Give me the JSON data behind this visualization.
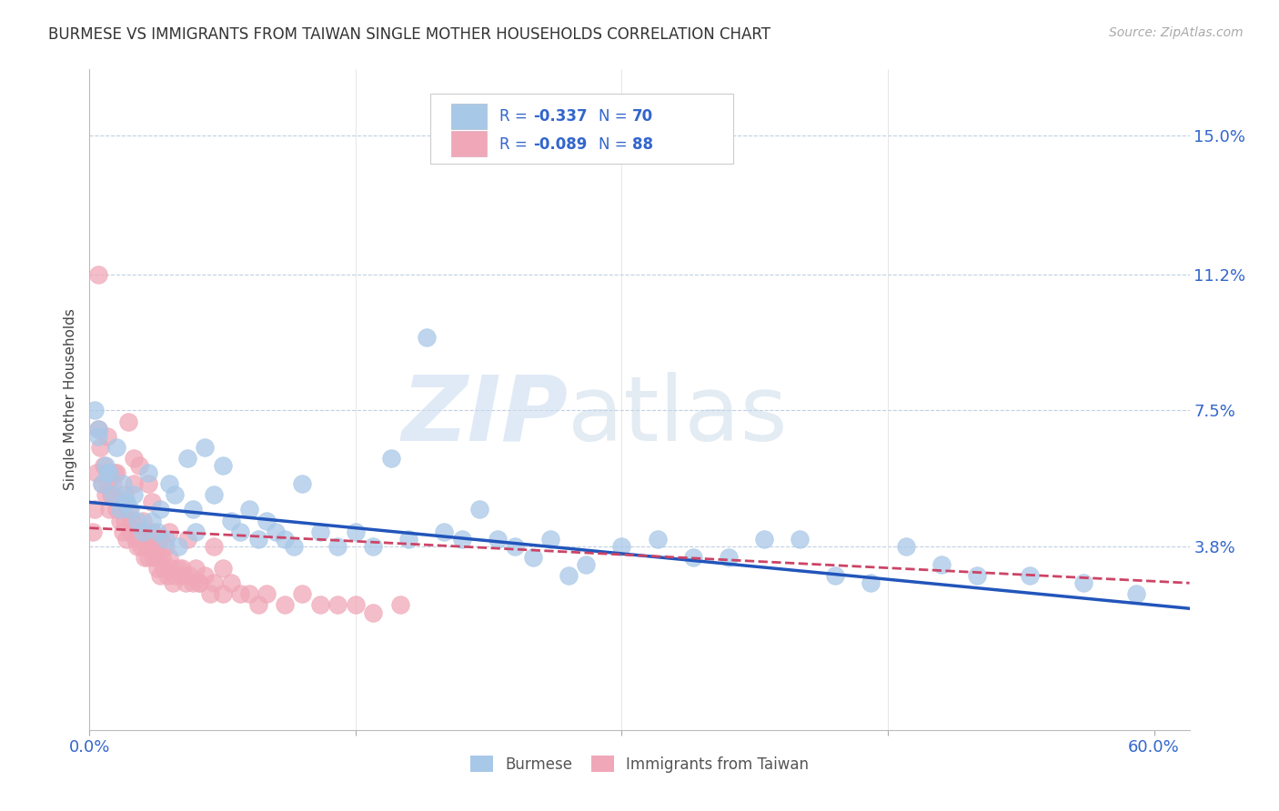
{
  "title": "BURMESE VS IMMIGRANTS FROM TAIWAN SINGLE MOTHER HOUSEHOLDS CORRELATION CHART",
  "source": "Source: ZipAtlas.com",
  "ylabel": "Single Mother Households",
  "ytick_labels": [
    "15.0%",
    "11.2%",
    "7.5%",
    "3.8%"
  ],
  "ytick_values": [
    0.15,
    0.112,
    0.075,
    0.038
  ],
  "xlim": [
    0.0,
    0.62
  ],
  "ylim": [
    -0.012,
    0.168
  ],
  "burmese_color": "#a8c8e8",
  "taiwan_color": "#f0a8b8",
  "burmese_line_color": "#2255bb",
  "taiwan_line_color": "#cc4466",
  "legend_label_blue": "Burmese",
  "legend_label_pink": "Immigrants from Taiwan",
  "R_burmese": "-0.337",
  "N_burmese": "70",
  "R_taiwan": "-0.089",
  "N_taiwan": "88",
  "text_color_blue": "#3366cc",
  "text_color_dark": "#334455",
  "burmese_x": [
    0.003,
    0.005,
    0.007,
    0.009,
    0.011,
    0.013,
    0.015,
    0.017,
    0.019,
    0.021,
    0.023,
    0.025,
    0.027,
    0.03,
    0.033,
    0.035,
    0.038,
    0.04,
    0.043,
    0.045,
    0.048,
    0.05,
    0.055,
    0.058,
    0.06,
    0.065,
    0.07,
    0.075,
    0.08,
    0.085,
    0.09,
    0.095,
    0.1,
    0.105,
    0.11,
    0.115,
    0.12,
    0.13,
    0.14,
    0.15,
    0.16,
    0.17,
    0.18,
    0.19,
    0.2,
    0.21,
    0.22,
    0.23,
    0.24,
    0.25,
    0.26,
    0.27,
    0.28,
    0.3,
    0.32,
    0.34,
    0.36,
    0.38,
    0.4,
    0.42,
    0.44,
    0.46,
    0.48,
    0.5,
    0.53,
    0.56,
    0.59,
    0.005,
    0.01,
    0.02
  ],
  "burmese_y": [
    0.075,
    0.07,
    0.055,
    0.06,
    0.058,
    0.052,
    0.065,
    0.048,
    0.055,
    0.05,
    0.048,
    0.052,
    0.045,
    0.042,
    0.058,
    0.045,
    0.042,
    0.048,
    0.04,
    0.055,
    0.052,
    0.038,
    0.062,
    0.048,
    0.042,
    0.065,
    0.052,
    0.06,
    0.045,
    0.042,
    0.048,
    0.04,
    0.045,
    0.042,
    0.04,
    0.038,
    0.055,
    0.042,
    0.038,
    0.042,
    0.038,
    0.062,
    0.04,
    0.095,
    0.042,
    0.04,
    0.048,
    0.04,
    0.038,
    0.035,
    0.04,
    0.03,
    0.033,
    0.038,
    0.04,
    0.035,
    0.035,
    0.04,
    0.04,
    0.03,
    0.028,
    0.038,
    0.033,
    0.03,
    0.03,
    0.028,
    0.025,
    0.068,
    0.058,
    0.05
  ],
  "taiwan_x": [
    0.002,
    0.003,
    0.004,
    0.005,
    0.006,
    0.007,
    0.008,
    0.009,
    0.01,
    0.011,
    0.012,
    0.013,
    0.014,
    0.015,
    0.016,
    0.017,
    0.018,
    0.019,
    0.02,
    0.021,
    0.022,
    0.023,
    0.024,
    0.025,
    0.026,
    0.027,
    0.028,
    0.029,
    0.03,
    0.031,
    0.032,
    0.033,
    0.034,
    0.035,
    0.036,
    0.037,
    0.038,
    0.039,
    0.04,
    0.041,
    0.042,
    0.043,
    0.044,
    0.045,
    0.046,
    0.047,
    0.048,
    0.05,
    0.052,
    0.054,
    0.056,
    0.058,
    0.06,
    0.062,
    0.065,
    0.068,
    0.07,
    0.075,
    0.08,
    0.085,
    0.09,
    0.095,
    0.1,
    0.11,
    0.12,
    0.13,
    0.14,
    0.15,
    0.16,
    0.175,
    0.015,
    0.02,
    0.025,
    0.03,
    0.035,
    0.04,
    0.055,
    0.07,
    0.005,
    0.01,
    0.022,
    0.028,
    0.033,
    0.038,
    0.045,
    0.052,
    0.062,
    0.075
  ],
  "taiwan_y": [
    0.042,
    0.048,
    0.058,
    0.07,
    0.065,
    0.055,
    0.06,
    0.052,
    0.055,
    0.048,
    0.052,
    0.055,
    0.058,
    0.048,
    0.05,
    0.045,
    0.048,
    0.042,
    0.045,
    0.04,
    0.048,
    0.042,
    0.045,
    0.055,
    0.04,
    0.038,
    0.042,
    0.038,
    0.04,
    0.035,
    0.038,
    0.035,
    0.038,
    0.042,
    0.035,
    0.038,
    0.032,
    0.035,
    0.03,
    0.035,
    0.032,
    0.038,
    0.03,
    0.035,
    0.032,
    0.028,
    0.03,
    0.032,
    0.03,
    0.028,
    0.03,
    0.028,
    0.032,
    0.028,
    0.03,
    0.025,
    0.028,
    0.025,
    0.028,
    0.025,
    0.025,
    0.022,
    0.025,
    0.022,
    0.025,
    0.022,
    0.022,
    0.022,
    0.02,
    0.022,
    0.058,
    0.052,
    0.062,
    0.045,
    0.05,
    0.04,
    0.04,
    0.038,
    0.112,
    0.068,
    0.072,
    0.06,
    0.055,
    0.038,
    0.042,
    0.032,
    0.028,
    0.032
  ]
}
